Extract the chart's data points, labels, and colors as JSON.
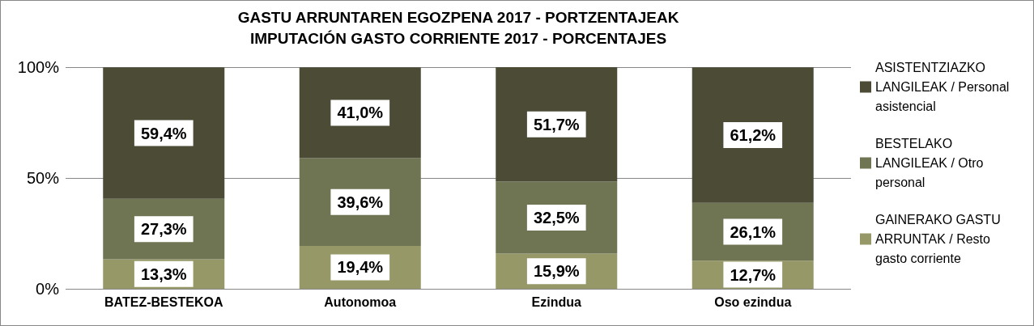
{
  "chart_data": {
    "type": "bar",
    "title": "GASTU ARRUNTAREN EGOZPENA 2017 - PORTZENTAJEAK\nIMPUTACIÓN GASTO CORRIENTE 2017 - PORCENTAJES",
    "categories": [
      "BATEZ-BESTEKOA",
      "Autonomoa",
      "Ezindua",
      "Oso ezindua"
    ],
    "stacked": true,
    "series": [
      {
        "name": "GAINERAKO GASTU ARRUNTAK / Resto gasto corriente",
        "color": "#979868",
        "values": [
          13.3,
          19.4,
          15.9,
          12.7
        ],
        "value_labels": [
          "13,3%",
          "19,4%",
          "15,9%",
          "12,7%"
        ]
      },
      {
        "name": "BESTELAKO LANGILEAK / Otro personal",
        "color": "#6f7552",
        "values": [
          27.3,
          39.6,
          32.5,
          26.1
        ],
        "value_labels": [
          "27,3%",
          "39,6%",
          "32,5%",
          "26,1%"
        ]
      },
      {
        "name": "ASISTENTZIAZKO LANGILEAK / Personal asistencial",
        "color": "#4b4b36",
        "values": [
          59.4,
          41.0,
          51.7,
          61.2
        ],
        "value_labels": [
          "59,4%",
          "41,0%",
          "51,7%",
          "61,2%"
        ]
      }
    ],
    "ylim": [
      0,
      100.1
    ],
    "yticks": [
      {
        "value": 0,
        "label": "0%"
      },
      {
        "value": 50,
        "label": "50%"
      },
      {
        "value": 100,
        "label": "100%"
      }
    ],
    "grid": "y",
    "legend": "right"
  }
}
